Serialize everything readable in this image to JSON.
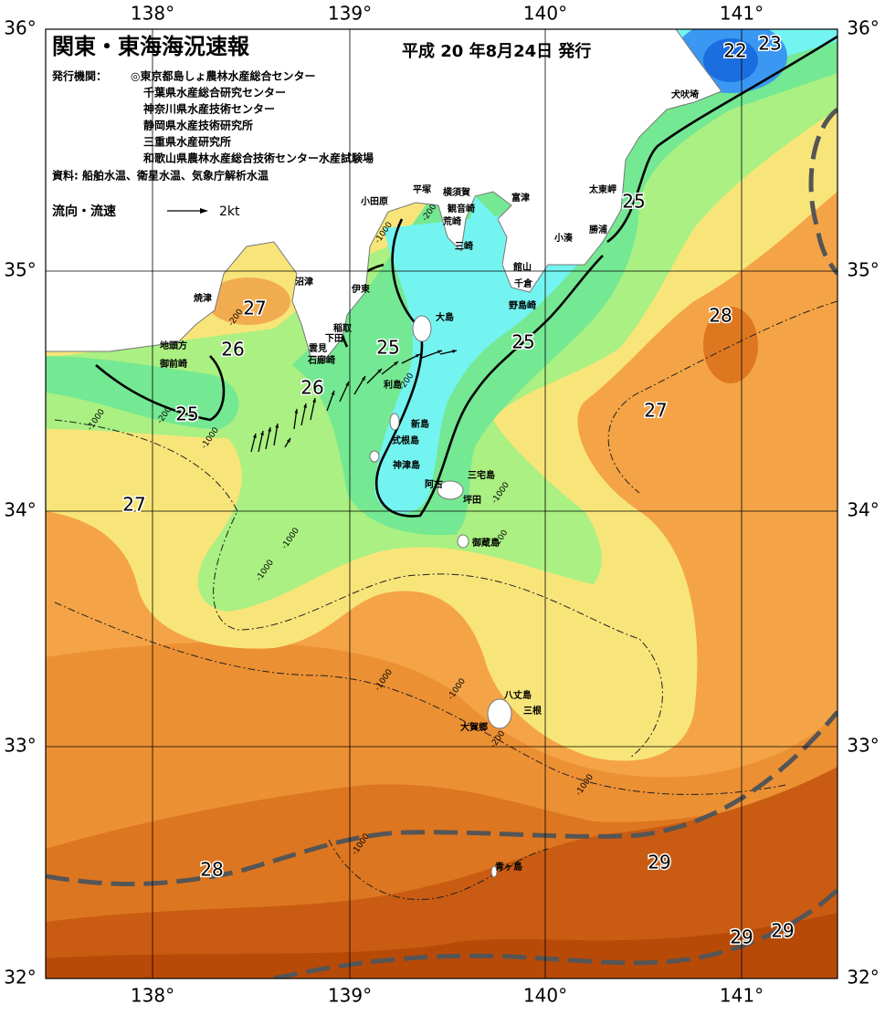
{
  "title": "関東・東海海況速報",
  "issue_date": "平成 20 年8月24日 発行",
  "agencies_label": "発行機関：",
  "agencies": [
    "◎東京都島しょ農林水産総合センター",
    "千葉県水産総合研究センター",
    "神奈川県水産技術センター",
    "静岡県水産技術研究所",
    "三重県水産研究所",
    "和歌山県農林水産総合技術センター水産試験場"
  ],
  "source": "資料: 船舶水温、衛星水温、気象庁解析水温",
  "current_legend": {
    "label": "流向・流速",
    "scale": "2kt"
  },
  "lon_labels": [
    "138°",
    "139°",
    "140°",
    "141°"
  ],
  "lat_labels": [
    "36°",
    "35°",
    "34°",
    "33°",
    "32°"
  ],
  "place_names": [
    "犬吠埼",
    "太東岬",
    "勝浦",
    "小湊",
    "富津",
    "館山",
    "千倉",
    "野島崎",
    "横須賀",
    "観音崎",
    "荒崎",
    "三崎",
    "平塚",
    "小田原",
    "沼津",
    "伊東",
    "稲取",
    "下田",
    "雲見",
    "石廊崎",
    "焼津",
    "地頭方",
    "御前崎",
    "大島",
    "利島",
    "新島",
    "式根島",
    "神津島",
    "三宅島",
    "阿古",
    "坪田",
    "御蔵島",
    "八丈島",
    "三根",
    "大賀郷",
    "青ヶ島"
  ],
  "isotherm_labels": [
    22,
    23,
    25,
    27,
    26,
    25,
    26,
    25,
    25,
    28,
    27,
    27,
    28,
    29,
    29,
    29
  ],
  "depth_labels": [
    "-200",
    "-1000",
    "-200",
    "-1000",
    "-200",
    "-1000",
    "-200",
    "-1000",
    "-1000",
    "-200",
    "-1000",
    "-1000",
    "-1000",
    "-200",
    "-1000",
    "-1000"
  ]
}
